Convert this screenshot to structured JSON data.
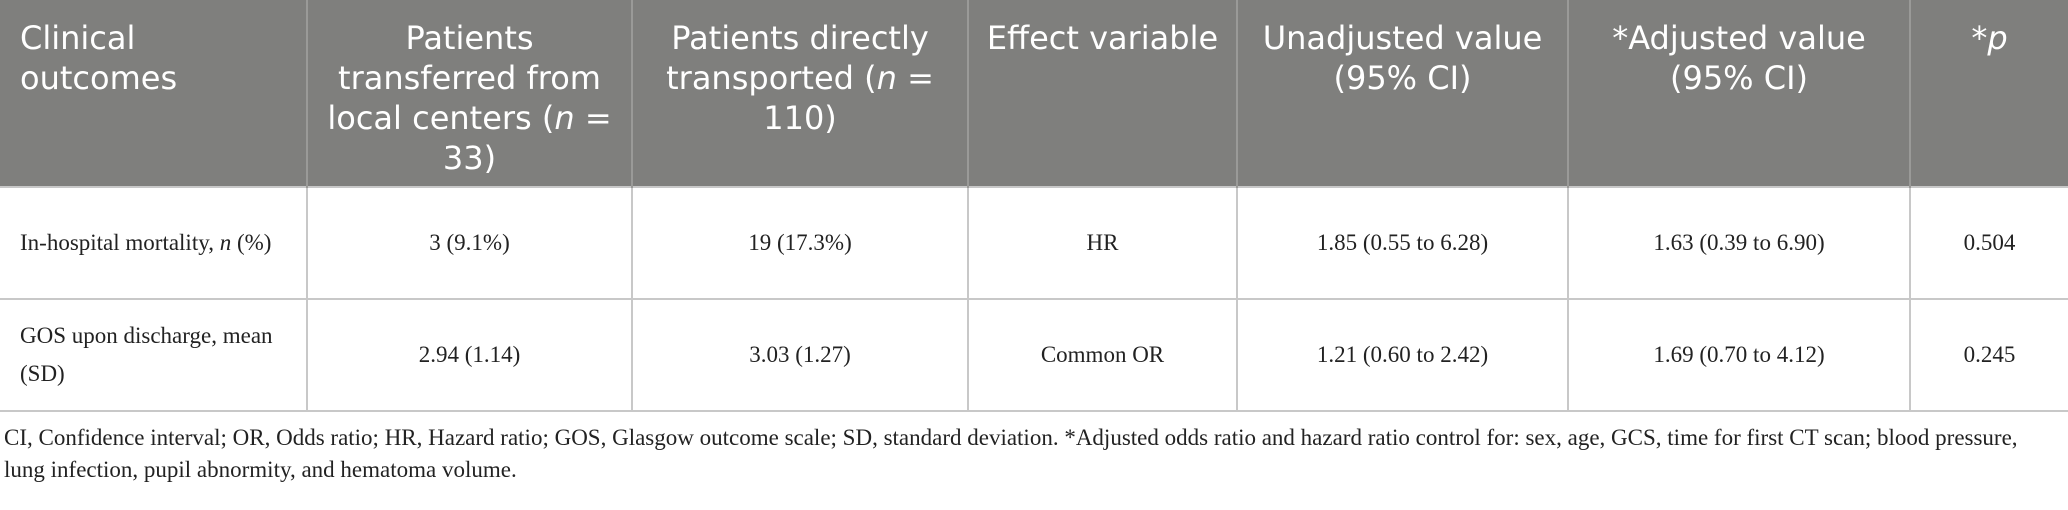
{
  "table": {
    "header": [
      [
        "Clinical outcomes"
      ],
      [
        "Patients transferred from local centers (",
        "n",
        " = 33)"
      ],
      [
        "Patients directly transported (",
        "n",
        " = 110)"
      ],
      [
        "Effect variable"
      ],
      [
        "Unadjusted value (95% CI)"
      ],
      [
        "*Adjusted value (95% CI)"
      ],
      [
        "*",
        "p"
      ]
    ],
    "rows": [
      [
        [
          "In-hospital mortality, ",
          "n",
          " (%)"
        ],
        [
          "3 (9.1%)"
        ],
        [
          "19 (17.3%)"
        ],
        [
          "HR"
        ],
        [
          "1.85 (0.55 to 6.28)"
        ],
        [
          "1.63 (0.39 to 6.90)"
        ],
        [
          "0.504"
        ]
      ],
      [
        [
          "GOS upon discharge, mean (SD)"
        ],
        [
          "2.94 (1.14)"
        ],
        [
          "3.03 (1.27)"
        ],
        [
          "Common OR"
        ],
        [
          "1.21 (0.60 to 2.42)"
        ],
        [
          "1.69 (0.70 to 4.12)"
        ],
        [
          "0.245"
        ]
      ]
    ]
  },
  "footnote": "CI, Confidence interval; OR, Odds ratio; HR, Hazard ratio; GOS, Glasgow outcome scale; SD, standard deviation. *Adjusted odds ratio and hazard ratio control for: sex, age, GCS, time for first CT scan; blood pressure, lung infection, pupil abnormity, and hematoma volume."
}
